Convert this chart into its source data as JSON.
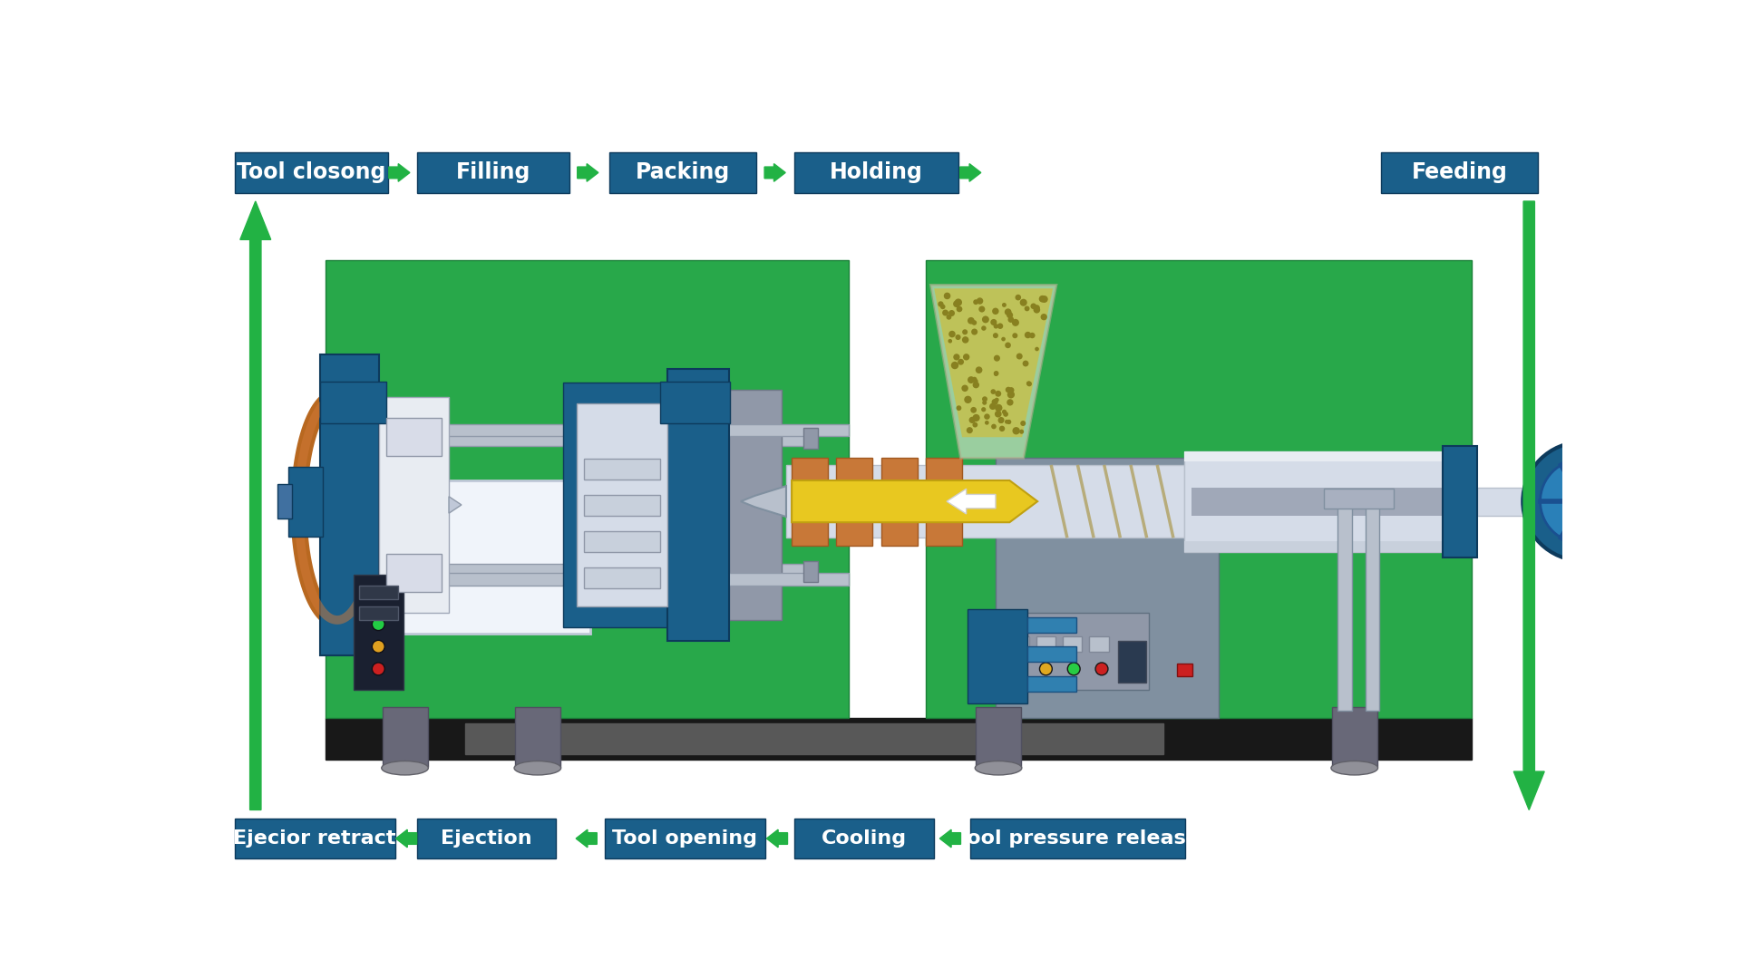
{
  "bg_color": "#ffffff",
  "top_labels": [
    "Tool closong",
    "Filling",
    "Packing",
    "Holding",
    "Feeding"
  ],
  "bottom_labels": [
    "Ejecior retract",
    "Ejection",
    "Tool opening",
    "Cooling",
    "Tool pressure release"
  ],
  "box_color": "#1a5f8a",
  "box_text_color": "#ffffff",
  "arrow_green": "#22b244",
  "machine_green": "#28a84a",
  "blue_part": "#1a5f8a",
  "blue_light": "#2a80b8",
  "silver": "#b8c0cc",
  "dark_silver": "#8090a0",
  "light_silver": "#d5dce8",
  "very_light_silver": "#e8ecf2",
  "yellow": "#e8c820",
  "orange_heater": "#c87840",
  "copper": "#b86820",
  "black_base": "#181818",
  "gray_base": "#585858",
  "white_mold": "#f0f2f8",
  "mold_gray": "#9098a8",
  "dark_mold": "#707888"
}
